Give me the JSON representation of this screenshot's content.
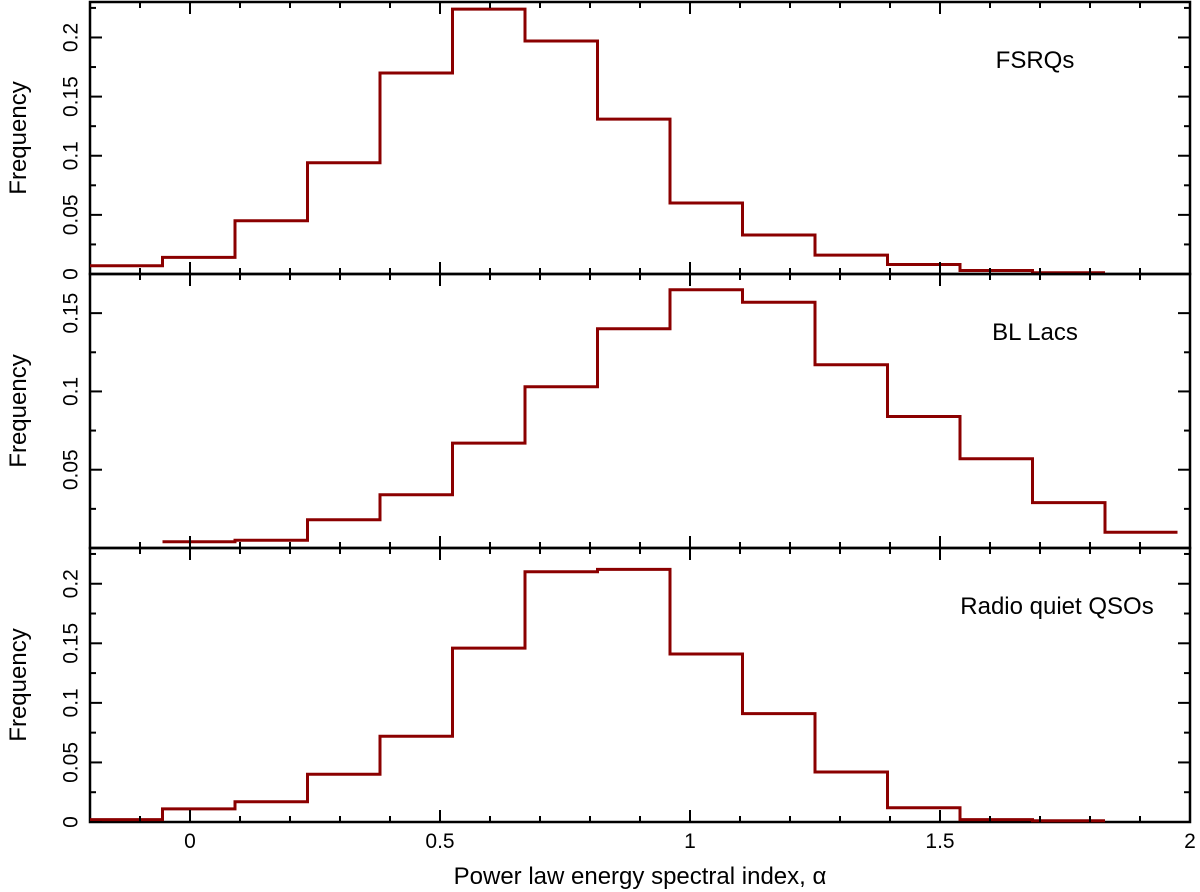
{
  "chart_data": [
    {
      "type": "histogram",
      "title": "FSRQs",
      "ylabel": "Frequency",
      "xlim": [
        -0.2,
        2.0
      ],
      "ylim": [
        0,
        0.23
      ],
      "yticks": [
        0,
        0.05,
        0.1,
        0.15,
        0.2
      ],
      "ytick_labels": [
        "0",
        "0.05",
        "0.1",
        "0.15",
        "0.2"
      ],
      "bin_edges": [
        -0.2,
        -0.055,
        0.09,
        0.235,
        0.38,
        0.525,
        0.67,
        0.815,
        0.96,
        1.105,
        1.25,
        1.395,
        1.54,
        1.685,
        1.83
      ],
      "values": [
        0.007,
        0.014,
        0.045,
        0.094,
        0.17,
        0.224,
        0.197,
        0.131,
        0.06,
        0.033,
        0.016,
        0.008,
        0.003,
        0.001
      ],
      "color": "#8b0000"
    },
    {
      "type": "histogram",
      "title": "BL Lacs",
      "ylabel": "Frequency",
      "xlim": [
        -0.2,
        2.0
      ],
      "ylim": [
        0,
        0.175
      ],
      "yticks": [
        0.05,
        0.1,
        0.15
      ],
      "ytick_labels": [
        "0.05",
        "0.1",
        "0.15"
      ],
      "bin_edges": [
        -0.055,
        0.09,
        0.235,
        0.38,
        0.525,
        0.67,
        0.815,
        0.96,
        1.105,
        1.25,
        1.395,
        1.54,
        1.685,
        1.83,
        1.975
      ],
      "values": [
        0.004,
        0.005,
        0.018,
        0.034,
        0.067,
        0.103,
        0.14,
        0.165,
        0.157,
        0.117,
        0.084,
        0.057,
        0.029,
        0.01
      ],
      "color": "#8b0000"
    },
    {
      "type": "histogram",
      "title": "Radio quiet QSOs",
      "ylabel": "Frequency",
      "xlabel": "Power law energy spectral index, α",
      "xlim": [
        -0.2,
        2.0
      ],
      "ylim": [
        0,
        0.23
      ],
      "yticks": [
        0,
        0.05,
        0.1,
        0.15,
        0.2
      ],
      "ytick_labels": [
        "0",
        "0.05",
        "0.1",
        "0.15",
        "0.2"
      ],
      "xticks": [
        0,
        0.5,
        1,
        1.5,
        2
      ],
      "xtick_labels": [
        "0",
        "0.5",
        "1",
        "1.5",
        "2"
      ],
      "bin_edges": [
        -0.2,
        -0.055,
        0.09,
        0.235,
        0.38,
        0.525,
        0.67,
        0.815,
        0.96,
        1.105,
        1.25,
        1.395,
        1.54,
        1.685,
        1.83
      ],
      "values": [
        0.002,
        0.011,
        0.017,
        0.04,
        0.072,
        0.146,
        0.21,
        0.212,
        0.141,
        0.091,
        0.042,
        0.012,
        0.002,
        0.001
      ],
      "color": "#8b0000"
    }
  ]
}
